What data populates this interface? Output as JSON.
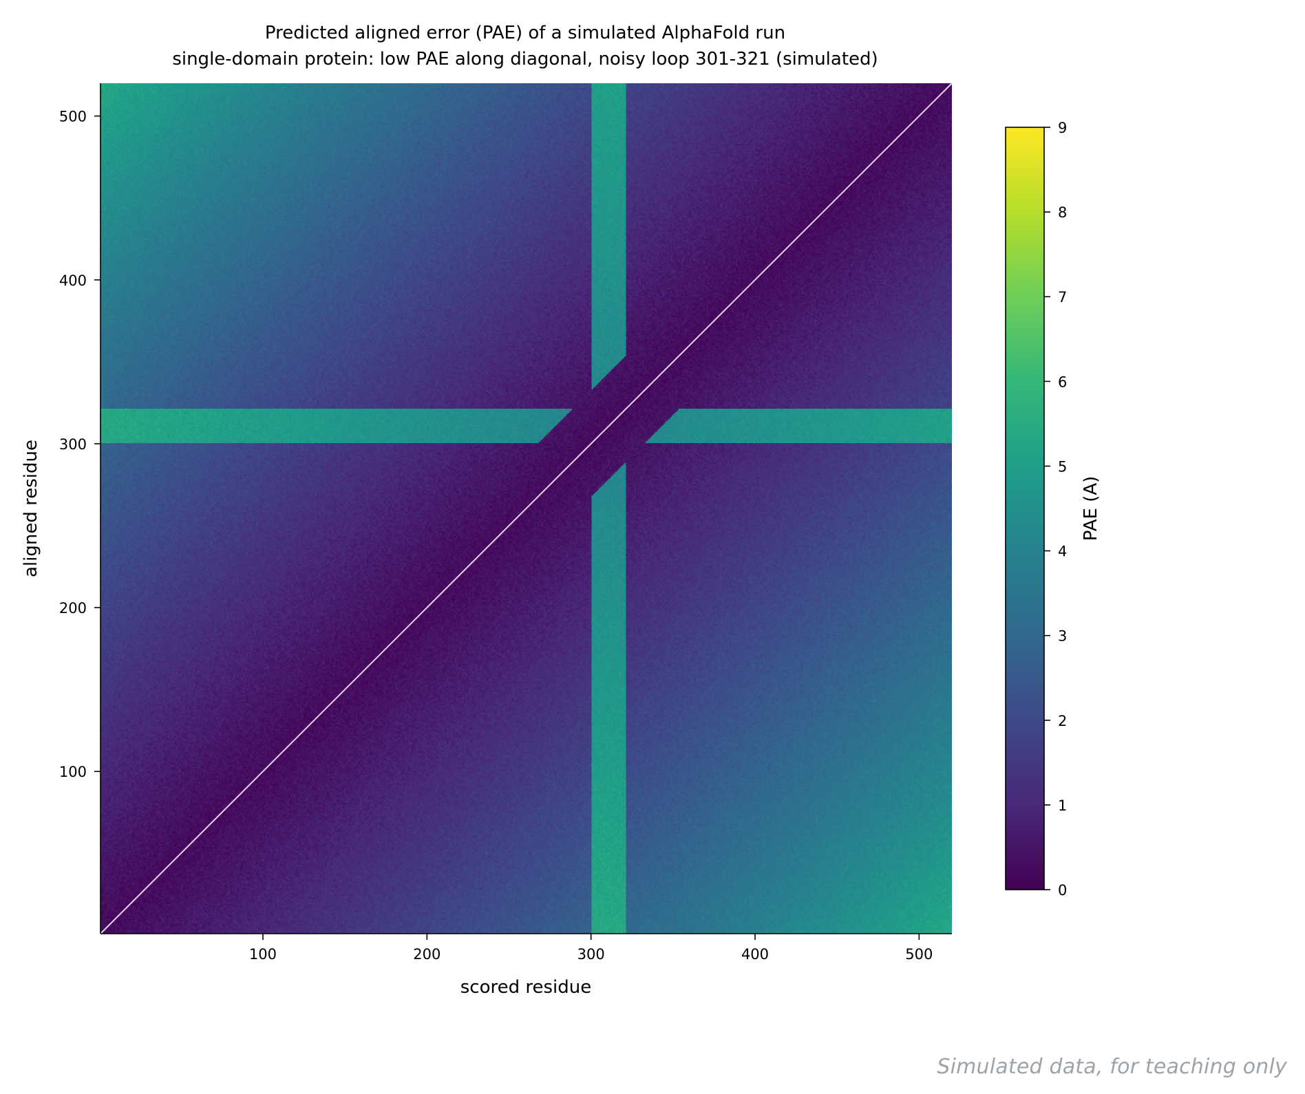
{
  "chart_data": {
    "type": "heatmap",
    "title": "Predicted aligned error (PAE) of a simulated AlphaFold run",
    "subtitle": "single-domain protein: low PAE along diagonal, noisy loop 301-321 (simulated)",
    "xlabel": "scored residue",
    "ylabel": "aligned residue",
    "xlim": [
      1,
      520
    ],
    "ylim": [
      1,
      520
    ],
    "xticks": [
      100,
      200,
      300,
      400,
      500
    ],
    "yticks": [
      100,
      200,
      300,
      400,
      500
    ],
    "colorbar": {
      "label": "PAE (A)",
      "range": [
        0,
        9
      ],
      "ticks": [
        0,
        1,
        2,
        3,
        4,
        5,
        6,
        7,
        8,
        9
      ],
      "colormap": "viridis"
    },
    "n_residues": 520,
    "loop_residues": [
      301,
      321
    ],
    "values_description_points": [
      {
        "scored": 10,
        "aligned": 510,
        "pae": 5.0
      },
      {
        "scored": 510,
        "aligned": 10,
        "pae": 5.0
      },
      {
        "scored": 300,
        "aligned": 100,
        "pae": 2.3
      },
      {
        "scored": 100,
        "aligned": 300,
        "pae": 2.3
      },
      {
        "scored": 410,
        "aligned": 510,
        "pae": 0.6
      },
      {
        "scored": 110,
        "aligned": 10,
        "pae": 0.6
      },
      {
        "scored": 310,
        "aligned": 10,
        "pae": 5.4
      },
      {
        "scored": 310,
        "aligned": 510,
        "pae": 4.4
      },
      {
        "scored": 10,
        "aligned": 310,
        "pae": 5.2
      },
      {
        "scored": 510,
        "aligned": 310,
        "pae": 4.4
      },
      {
        "scored": 310,
        "aligned": 310,
        "pae": 0.3
      }
    ],
    "diagonal_line": true,
    "grid": false
  },
  "watermark": "Simulated data, for teaching only"
}
